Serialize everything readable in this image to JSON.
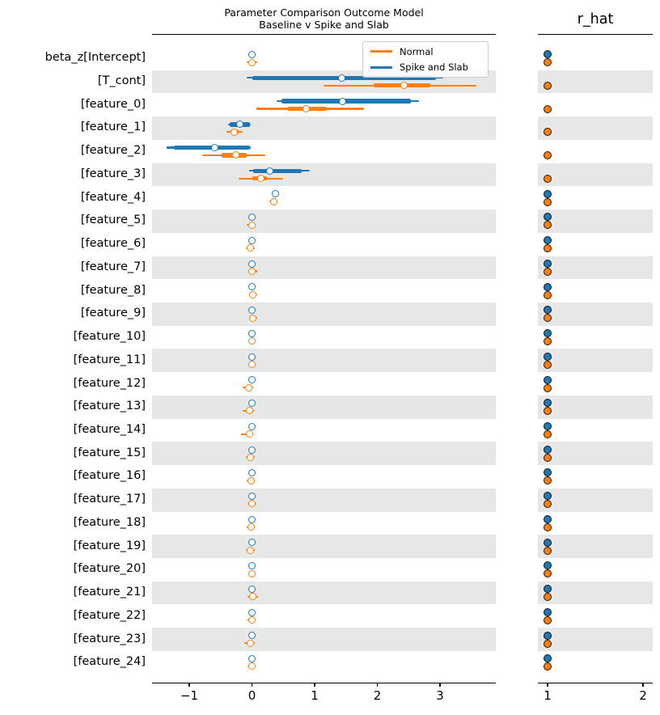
{
  "chart_data": {
    "type": "forest",
    "title": {
      "line1": "Parameter Comparison Outcome Model",
      "line2": "Baseline v Spike and Slab"
    },
    "rhat_title": "r_hat",
    "legend": [
      {
        "label": "Normal",
        "color": "#ff7f0e"
      },
      {
        "label": "Spike and Slab",
        "color": "#1f77b4"
      }
    ],
    "colors": {
      "normal": "#ff7f0e",
      "spike": "#1f77b4",
      "band": "#e7e7e7",
      "spine": "#000000"
    },
    "main_axis": {
      "ticks": [
        -1,
        0,
        1,
        2,
        3
      ],
      "xlim": [
        -1.59,
        3.89
      ]
    },
    "rhat_axis": {
      "ticks": [
        1,
        2
      ],
      "xlim": [
        0.9,
        2.1
      ]
    },
    "layout": {
      "legend_position": "upper right",
      "grid": false,
      "shading": "alternate rows"
    },
    "rows": [
      {
        "label": "beta_z[Intercept]",
        "shaded": false,
        "spike": {
          "lo": -0.04,
          "thick_lo": -0.02,
          "median": 0.0,
          "thick_hi": 0.02,
          "hi": 0.04
        },
        "normal": {
          "lo": -0.08,
          "thick_lo": -0.03,
          "median": 0.0,
          "thick_hi": 0.03,
          "hi": 0.08
        },
        "rhat": {
          "spike": 1.0,
          "normal": 1.0
        }
      },
      {
        "label": "[T_cont]",
        "shaded": true,
        "spike": {
          "lo": -0.08,
          "thick_lo": 0.0,
          "median": 1.43,
          "thick_hi": 2.93,
          "hi": 3.05
        },
        "normal": {
          "lo": 1.14,
          "thick_lo": 1.94,
          "median": 2.42,
          "thick_hi": 2.85,
          "hi": 3.58
        },
        "rhat": {
          "spike": null,
          "normal": 1.0
        }
      },
      {
        "label": "[feature_0]",
        "shaded": false,
        "spike": {
          "lo": 0.39,
          "thick_lo": 0.47,
          "median": 1.45,
          "thick_hi": 2.53,
          "hi": 2.66
        },
        "normal": {
          "lo": 0.07,
          "thick_lo": 0.56,
          "median": 0.86,
          "thick_hi": 1.19,
          "hi": 1.79
        },
        "rhat": {
          "spike": null,
          "normal": 1.0
        }
      },
      {
        "label": "[feature_1]",
        "shaded": true,
        "spike": {
          "lo": -0.38,
          "thick_lo": -0.35,
          "median": -0.2,
          "thick_hi": -0.03,
          "hi": -0.02
        },
        "normal": {
          "lo": -0.41,
          "thick_lo": -0.34,
          "median": -0.29,
          "thick_hi": -0.21,
          "hi": -0.15
        },
        "rhat": {
          "spike": null,
          "normal": 1.0
        }
      },
      {
        "label": "[feature_2]",
        "shaded": false,
        "spike": {
          "lo": -1.36,
          "thick_lo": -1.25,
          "median": -0.59,
          "thick_hi": -0.03,
          "hi": -0.02
        },
        "normal": {
          "lo": -0.79,
          "thick_lo": -0.48,
          "median": -0.26,
          "thick_hi": -0.08,
          "hi": 0.21
        },
        "rhat": {
          "spike": null,
          "normal": 1.0
        }
      },
      {
        "label": "[feature_3]",
        "shaded": true,
        "spike": {
          "lo": -0.05,
          "thick_lo": 0.02,
          "median": 0.28,
          "thick_hi": 0.79,
          "hi": 0.92
        },
        "normal": {
          "lo": -0.21,
          "thick_lo": 0.01,
          "median": 0.14,
          "thick_hi": 0.24,
          "hi": 0.5
        },
        "rhat": {
          "spike": null,
          "normal": 1.0
        }
      },
      {
        "label": "[feature_4]",
        "shaded": false,
        "spike": {
          "lo": 0.35,
          "thick_lo": 0.36,
          "median": 0.38,
          "thick_hi": 0.39,
          "hi": 0.4
        },
        "normal": {
          "lo": 0.28,
          "thick_lo": 0.32,
          "median": 0.35,
          "thick_hi": 0.38,
          "hi": 0.41
        },
        "rhat": {
          "spike": 1.0,
          "normal": 1.0
        }
      },
      {
        "label": "[feature_5]",
        "shaded": true,
        "spike": {
          "lo": -0.02,
          "thick_lo": -0.01,
          "median": 0.0,
          "thick_hi": 0.01,
          "hi": 0.02
        },
        "normal": {
          "lo": -0.08,
          "thick_lo": -0.03,
          "median": 0.0,
          "thick_hi": 0.03,
          "hi": 0.06
        },
        "rhat": {
          "spike": 1.0,
          "normal": 1.0
        }
      },
      {
        "label": "[feature_6]",
        "shaded": false,
        "spike": {
          "lo": -0.02,
          "thick_lo": -0.01,
          "median": 0.0,
          "thick_hi": 0.01,
          "hi": 0.02
        },
        "normal": {
          "lo": -0.1,
          "thick_lo": -0.05,
          "median": -0.02,
          "thick_hi": 0.01,
          "hi": 0.04
        },
        "rhat": {
          "spike": 1.0,
          "normal": 1.0
        }
      },
      {
        "label": "[feature_7]",
        "shaded": true,
        "spike": {
          "lo": -0.02,
          "thick_lo": -0.01,
          "median": 0.0,
          "thick_hi": 0.01,
          "hi": 0.02
        },
        "normal": {
          "lo": -0.06,
          "thick_lo": -0.03,
          "median": 0.0,
          "thick_hi": 0.03,
          "hi": 0.08
        },
        "rhat": {
          "spike": 1.0,
          "normal": 1.0
        }
      },
      {
        "label": "[feature_8]",
        "shaded": false,
        "spike": {
          "lo": -0.02,
          "thick_lo": -0.01,
          "median": 0.0,
          "thick_hi": 0.01,
          "hi": 0.02
        },
        "normal": {
          "lo": -0.04,
          "thick_lo": -0.02,
          "median": 0.01,
          "thick_hi": 0.04,
          "hi": 0.09
        },
        "rhat": {
          "spike": 1.0,
          "normal": 1.0
        }
      },
      {
        "label": "[feature_9]",
        "shaded": true,
        "spike": {
          "lo": -0.02,
          "thick_lo": -0.01,
          "median": 0.0,
          "thick_hi": 0.01,
          "hi": 0.02
        },
        "normal": {
          "lo": -0.05,
          "thick_lo": -0.02,
          "median": 0.01,
          "thick_hi": 0.04,
          "hi": 0.08
        },
        "rhat": {
          "spike": 1.0,
          "normal": 1.0
        }
      },
      {
        "label": "[feature_10]",
        "shaded": false,
        "spike": {
          "lo": -0.02,
          "thick_lo": -0.01,
          "median": 0.0,
          "thick_hi": 0.01,
          "hi": 0.02
        },
        "normal": {
          "lo": -0.05,
          "thick_lo": -0.03,
          "median": 0.0,
          "thick_hi": 0.03,
          "hi": 0.05
        },
        "rhat": {
          "spike": 1.0,
          "normal": 1.0
        }
      },
      {
        "label": "[feature_11]",
        "shaded": true,
        "spike": {
          "lo": -0.02,
          "thick_lo": -0.01,
          "median": 0.0,
          "thick_hi": 0.01,
          "hi": 0.02
        },
        "normal": {
          "lo": -0.06,
          "thick_lo": -0.03,
          "median": 0.0,
          "thick_hi": 0.03,
          "hi": 0.05
        },
        "rhat": {
          "spike": 1.0,
          "normal": 1.0
        }
      },
      {
        "label": "[feature_12]",
        "shaded": false,
        "spike": {
          "lo": -0.02,
          "thick_lo": -0.01,
          "median": 0.0,
          "thick_hi": 0.01,
          "hi": 0.02
        },
        "normal": {
          "lo": -0.15,
          "thick_lo": -0.08,
          "median": -0.05,
          "thick_hi": -0.02,
          "hi": 0.02
        },
        "rhat": {
          "spike": 1.0,
          "normal": 1.0
        }
      },
      {
        "label": "[feature_13]",
        "shaded": true,
        "spike": {
          "lo": -0.02,
          "thick_lo": -0.01,
          "median": 0.0,
          "thick_hi": 0.01,
          "hi": 0.02
        },
        "normal": {
          "lo": -0.15,
          "thick_lo": -0.07,
          "median": -0.04,
          "thick_hi": -0.01,
          "hi": 0.03
        },
        "rhat": {
          "spike": 1.0,
          "normal": 1.0
        }
      },
      {
        "label": "[feature_14]",
        "shaded": false,
        "spike": {
          "lo": -0.02,
          "thick_lo": -0.01,
          "median": 0.0,
          "thick_hi": 0.01,
          "hi": 0.02
        },
        "normal": {
          "lo": -0.17,
          "thick_lo": -0.07,
          "median": -0.04,
          "thick_hi": -0.01,
          "hi": 0.02
        },
        "rhat": {
          "spike": 1.0,
          "normal": 1.0
        }
      },
      {
        "label": "[feature_15]",
        "shaded": true,
        "spike": {
          "lo": -0.02,
          "thick_lo": -0.01,
          "median": 0.0,
          "thick_hi": 0.01,
          "hi": 0.02
        },
        "normal": {
          "lo": -0.1,
          "thick_lo": -0.05,
          "median": -0.02,
          "thick_hi": 0.01,
          "hi": 0.05
        },
        "rhat": {
          "spike": 1.0,
          "normal": 1.0
        }
      },
      {
        "label": "[feature_16]",
        "shaded": false,
        "spike": {
          "lo": -0.02,
          "thick_lo": -0.01,
          "median": 0.0,
          "thick_hi": 0.01,
          "hi": 0.02
        },
        "normal": {
          "lo": -0.08,
          "thick_lo": -0.04,
          "median": -0.01,
          "thick_hi": 0.02,
          "hi": 0.05
        },
        "rhat": {
          "spike": 1.0,
          "normal": 1.0
        }
      },
      {
        "label": "[feature_17]",
        "shaded": true,
        "spike": {
          "lo": -0.02,
          "thick_lo": -0.01,
          "median": 0.0,
          "thick_hi": 0.01,
          "hi": 0.02
        },
        "normal": {
          "lo": -0.07,
          "thick_lo": -0.03,
          "median": 0.0,
          "thick_hi": 0.03,
          "hi": 0.07
        },
        "rhat": {
          "spike": 1.0,
          "normal": 1.0
        }
      },
      {
        "label": "[feature_18]",
        "shaded": false,
        "spike": {
          "lo": -0.02,
          "thick_lo": -0.01,
          "median": 0.0,
          "thick_hi": 0.01,
          "hi": 0.02
        },
        "normal": {
          "lo": -0.08,
          "thick_lo": -0.04,
          "median": -0.01,
          "thick_hi": 0.02,
          "hi": 0.05
        },
        "rhat": {
          "spike": 1.0,
          "normal": 1.0
        }
      },
      {
        "label": "[feature_19]",
        "shaded": true,
        "spike": {
          "lo": -0.02,
          "thick_lo": -0.01,
          "median": 0.0,
          "thick_hi": 0.01,
          "hi": 0.02
        },
        "normal": {
          "lo": -0.1,
          "thick_lo": -0.05,
          "median": -0.02,
          "thick_hi": 0.01,
          "hi": 0.04
        },
        "rhat": {
          "spike": 1.0,
          "normal": 1.0
        }
      },
      {
        "label": "[feature_20]",
        "shaded": false,
        "spike": {
          "lo": -0.02,
          "thick_lo": -0.01,
          "median": 0.0,
          "thick_hi": 0.01,
          "hi": 0.02
        },
        "normal": {
          "lo": -0.06,
          "thick_lo": -0.03,
          "median": 0.0,
          "thick_hi": 0.03,
          "hi": 0.06
        },
        "rhat": {
          "spike": 1.0,
          "normal": 1.0
        }
      },
      {
        "label": "[feature_21]",
        "shaded": true,
        "spike": {
          "lo": -0.02,
          "thick_lo": -0.01,
          "median": 0.0,
          "thick_hi": 0.01,
          "hi": 0.02
        },
        "normal": {
          "lo": -0.07,
          "thick_lo": -0.02,
          "median": 0.01,
          "thick_hi": 0.04,
          "hi": 0.1
        },
        "rhat": {
          "spike": 1.0,
          "normal": 1.0
        }
      },
      {
        "label": "[feature_22]",
        "shaded": false,
        "spike": {
          "lo": -0.02,
          "thick_lo": -0.01,
          "median": 0.0,
          "thick_hi": 0.01,
          "hi": 0.02
        },
        "normal": {
          "lo": -0.07,
          "thick_lo": -0.03,
          "median": 0.0,
          "thick_hi": 0.03,
          "hi": 0.06
        },
        "rhat": {
          "spike": 1.0,
          "normal": 1.0
        }
      },
      {
        "label": "[feature_23]",
        "shaded": true,
        "spike": {
          "lo": -0.02,
          "thick_lo": -0.01,
          "median": 0.0,
          "thick_hi": 0.01,
          "hi": 0.02
        },
        "normal": {
          "lo": -0.12,
          "thick_lo": -0.05,
          "median": -0.02,
          "thick_hi": 0.01,
          "hi": 0.04
        },
        "rhat": {
          "spike": 1.0,
          "normal": 1.0
        }
      },
      {
        "label": "[feature_24]",
        "shaded": false,
        "spike": {
          "lo": -0.02,
          "thick_lo": -0.01,
          "median": 0.0,
          "thick_hi": 0.01,
          "hi": 0.02
        },
        "normal": {
          "lo": -0.07,
          "thick_lo": -0.03,
          "median": 0.0,
          "thick_hi": 0.03,
          "hi": 0.05
        },
        "rhat": {
          "spike": 1.0,
          "normal": 1.0
        }
      }
    ]
  }
}
